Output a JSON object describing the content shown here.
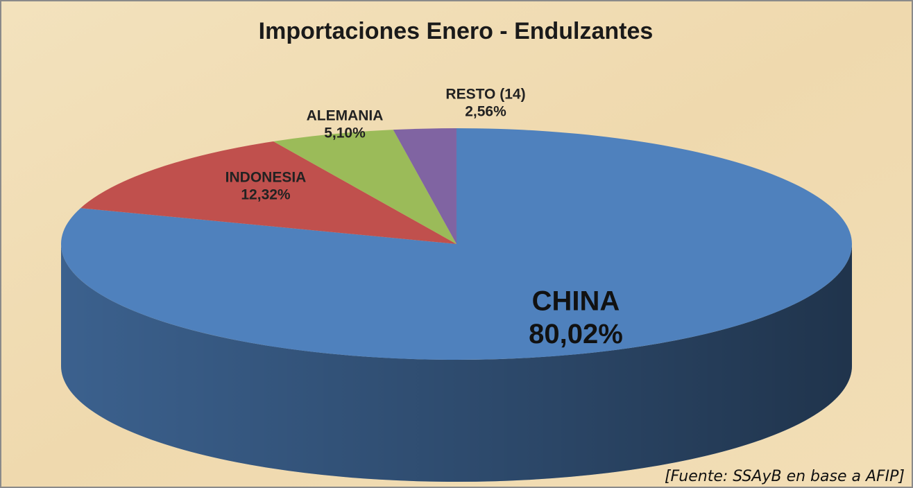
{
  "chart_data": {
    "type": "pie3d",
    "title": "Importaciones Enero - Endulzantes",
    "categories": [
      "CHINA",
      "INDONESIA",
      "ALEMANIA",
      "RESTO (14)"
    ],
    "values": [
      80.02,
      12.32,
      5.1,
      2.56
    ],
    "value_labels": [
      "80,02%",
      "12,32%",
      "5,10%",
      "2,56%"
    ],
    "colors": [
      "#4f81bd",
      "#c0504d",
      "#9bbb59",
      "#8064a2"
    ],
    "source": "[Fuente: SSAyB en base a AFIP]"
  }
}
